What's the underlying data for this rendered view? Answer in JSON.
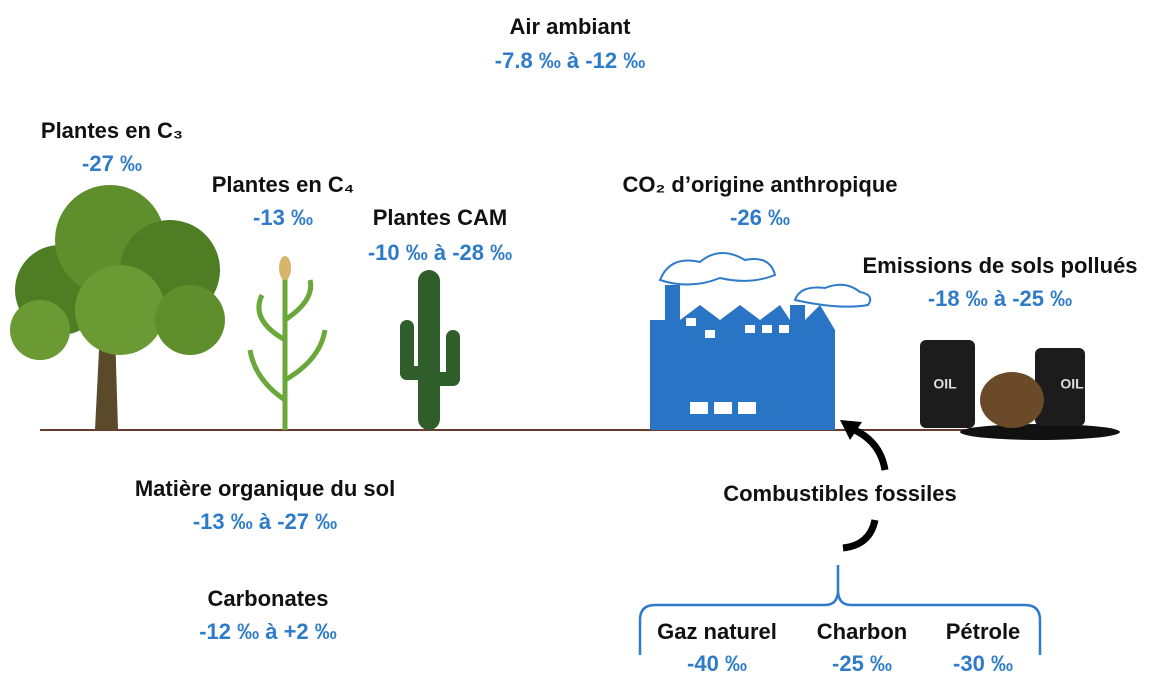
{
  "air": {
    "label": "Air ambiant",
    "value": "-7.8 ‰ à -12 ‰"
  },
  "sources": [
    {
      "label": "Plantes en C₃",
      "value": "-27 ‰"
    },
    {
      "label": "Plantes en C₄",
      "value": "-13 ‰"
    },
    {
      "label": "Plantes CAM",
      "value": "-10 ‰ à -28 ‰"
    },
    {
      "label": "CO₂ d’origine anthropique",
      "value": "-26 ‰"
    },
    {
      "label": "Emissions de sols pollués",
      "value": "-18 ‰ à -25 ‰"
    }
  ],
  "soil": [
    {
      "label": "Matière organique du sol",
      "value": "-13 ‰ à -27 ‰"
    },
    {
      "label": "Carbonates",
      "value": "-12 ‰ à +2 ‰"
    }
  ],
  "fossils": {
    "label": "Combustibles fossiles",
    "items": [
      {
        "label": "Gaz naturel",
        "value": "-40 ‰"
      },
      {
        "label": "Charbon",
        "value": "-25 ‰"
      },
      {
        "label": "Pétrole",
        "value": "-30 ‰"
      }
    ]
  },
  "barrels": [
    "OIL",
    "OIL"
  ]
}
